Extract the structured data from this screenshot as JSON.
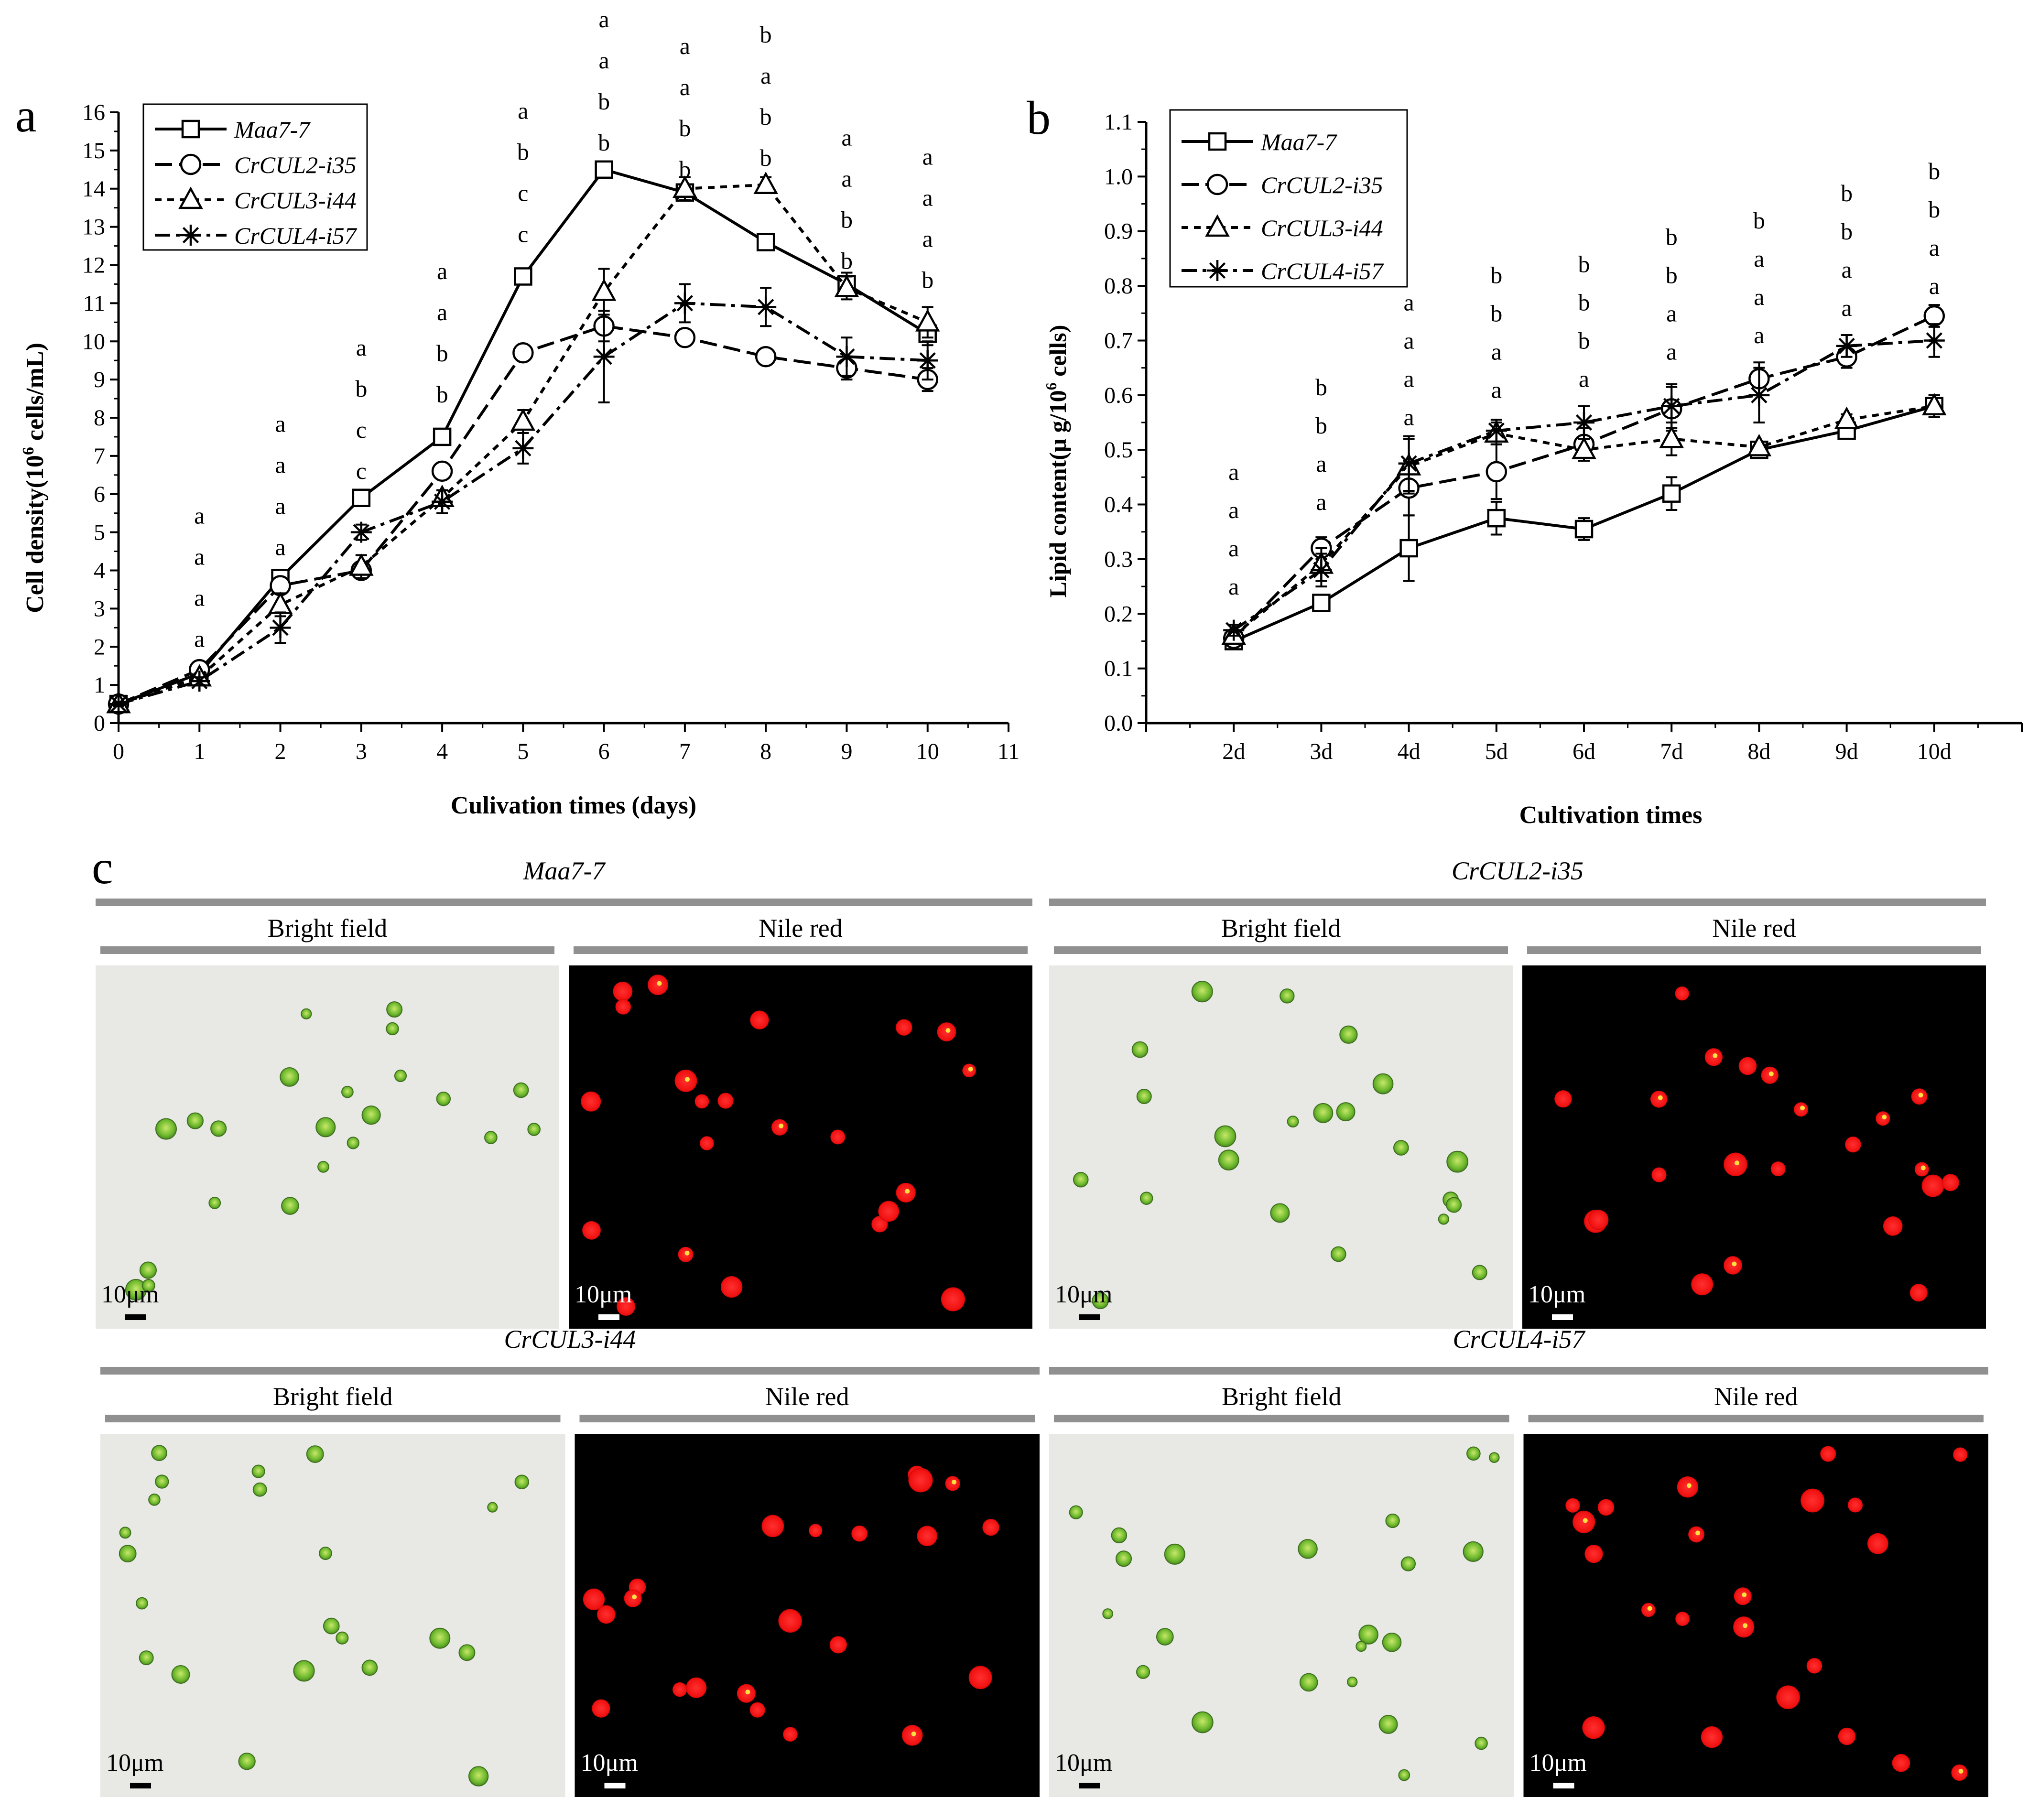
{
  "colors": {
    "panel_letter": "#2a2af0",
    "grey_bar": "#909090",
    "bright_bg": "#e8e8e4",
    "cell_green": "#7cc03a",
    "nile_bg": "#000000",
    "nile_red": "#ff1a1a",
    "nile_yellow": "#ffe040"
  },
  "chart_data": [
    {
      "panel": "a",
      "type": "line",
      "xlabel": "Culivation times (days)",
      "ylabel": "Cell density",
      "ylabel_unit_prefix": "(10",
      "ylabel_unit_sup": "6",
      "ylabel_unit_suffix": " cells/mL)",
      "xlim": [
        0,
        11
      ],
      "ylim": [
        0,
        16
      ],
      "x_ticks": [
        "0",
        "1",
        "2",
        "3",
        "4",
        "5",
        "6",
        "7",
        "8",
        "9",
        "10",
        "11"
      ],
      "y_ticks": [
        "0",
        "1",
        "2",
        "3",
        "4",
        "5",
        "6",
        "7",
        "8",
        "9",
        "10",
        "11",
        "12",
        "13",
        "14",
        "15",
        "16"
      ],
      "legend": [
        "Maa7-7",
        "CrCUL2-i35",
        "CrCUL3-i44",
        "CrCUL4-i57"
      ],
      "x": [
        0,
        1,
        2,
        3,
        4,
        5,
        6,
        7,
        8,
        9,
        10
      ],
      "series": [
        {
          "name": "Maa7-7",
          "marker": "square",
          "dash": "solid",
          "values": [
            0.5,
            1.3,
            3.8,
            5.9,
            7.5,
            11.7,
            14.5,
            13.9,
            12.6,
            11.5,
            10.2
          ],
          "err": [
            0.05,
            0.1,
            0.15,
            0.2,
            0.15,
            0.15,
            0.1,
            0.15,
            0.2,
            0.3,
            0.3
          ]
        },
        {
          "name": "CrCUL2-i35",
          "marker": "circle",
          "dash": "long",
          "values": [
            0.5,
            1.4,
            3.6,
            4.0,
            6.6,
            9.7,
            10.4,
            10.1,
            9.6,
            9.3,
            9.0
          ],
          "err": [
            0.05,
            0.1,
            0.2,
            0.2,
            0.2,
            0.2,
            0.4,
            0.2,
            0.2,
            0.3,
            0.3
          ]
        },
        {
          "name": "CrCUL3-i44",
          "marker": "triangle",
          "dash": "short",
          "values": [
            0.5,
            1.2,
            3.1,
            4.1,
            5.9,
            7.9,
            11.3,
            14.0,
            14.1,
            11.4,
            10.5
          ],
          "err": [
            0.05,
            0.1,
            0.3,
            0.3,
            0.2,
            0.3,
            0.6,
            0.3,
            0.2,
            0.3,
            0.4
          ]
        },
        {
          "name": "CrCUL4-i57",
          "marker": "asterisk",
          "dash": "dashdot",
          "values": [
            0.5,
            1.1,
            2.5,
            5.0,
            5.8,
            7.2,
            9.6,
            11.0,
            10.9,
            9.6,
            9.5
          ],
          "err": [
            0.05,
            0.1,
            0.4,
            0.2,
            0.3,
            0.4,
            1.2,
            0.5,
            0.5,
            0.5,
            0.5
          ]
        }
      ],
      "sig_letters": [
        {
          "x": 1,
          "y_start": 2.0,
          "letters": [
            "a",
            "a",
            "a",
            "a"
          ]
        },
        {
          "x": 2,
          "y_start": 4.4,
          "letters": [
            "a",
            "a",
            "a",
            "a"
          ]
        },
        {
          "x": 3,
          "y_start": 6.4,
          "letters": [
            "c",
            "c",
            "b",
            "a"
          ]
        },
        {
          "x": 4,
          "y_start": 8.4,
          "letters": [
            "b",
            "b",
            "a",
            "a"
          ]
        },
        {
          "x": 5,
          "y_start": 12.6,
          "letters": [
            "c",
            "c",
            "b",
            "a"
          ]
        },
        {
          "x": 6,
          "y_start": 15.0,
          "letters": [
            "b",
            "b",
            "a",
            "a"
          ]
        },
        {
          "x": 7,
          "y_start": 14.3,
          "letters": [
            "b",
            "b",
            "a",
            "a"
          ]
        },
        {
          "x": 8,
          "y_start": 14.6,
          "letters": [
            "b",
            "b",
            "a",
            "b"
          ]
        },
        {
          "x": 9,
          "y_start": 11.9,
          "letters": [
            "b",
            "b",
            "a",
            "a"
          ]
        },
        {
          "x": 10,
          "y_start": 11.4,
          "letters": [
            "b",
            "a",
            "a",
            "a"
          ]
        }
      ]
    },
    {
      "panel": "b",
      "type": "line",
      "xlabel": "Cultivation times",
      "ylabel": "Lipid content(μ g/10",
      "ylabel_sup": "6",
      "ylabel_suffix": " cells)",
      "xlim": [
        1,
        11
      ],
      "ylim": [
        0,
        1.1
      ],
      "categories": [
        "2d",
        "3d",
        "4d",
        "5d",
        "6d",
        "7d",
        "8d",
        "9d",
        "10d"
      ],
      "y_ticks": [
        "0.0",
        "0.1",
        "0.2",
        "0.3",
        "0.4",
        "0.5",
        "0.6",
        "0.7",
        "0.8",
        "0.9",
        "1.0",
        "1.1"
      ],
      "legend": [
        "Maa7-7",
        "CrCUL2-i35",
        "CrCUL3-i44",
        "CrCUL4-i57"
      ],
      "x": [
        2,
        3,
        4,
        5,
        6,
        7,
        8,
        9,
        10
      ],
      "series": [
        {
          "name": "Maa7-7",
          "marker": "square",
          "dash": "solid",
          "values": [
            0.15,
            0.22,
            0.32,
            0.375,
            0.355,
            0.42,
            0.5,
            0.535,
            0.58
          ],
          "err": [
            0.01,
            0.01,
            0.06,
            0.03,
            0.02,
            0.03,
            0.01,
            0.01,
            0.02
          ]
        },
        {
          "name": "CrCUL2-i35",
          "marker": "circle",
          "dash": "long",
          "values": [
            0.155,
            0.32,
            0.43,
            0.46,
            0.51,
            0.575,
            0.63,
            0.67,
            0.745
          ],
          "err": [
            0.01,
            0.02,
            0.05,
            0.05,
            0.03,
            0.04,
            0.03,
            0.02,
            0.02
          ]
        },
        {
          "name": "CrCUL3-i44",
          "marker": "triangle",
          "dash": "short",
          "values": [
            0.16,
            0.29,
            0.47,
            0.53,
            0.5,
            0.52,
            0.505,
            0.555,
            0.58
          ],
          "err": [
            0.01,
            0.03,
            0.05,
            0.02,
            0.02,
            0.03,
            0.01,
            0.01,
            0.02
          ]
        },
        {
          "name": "CrCUL4-i57",
          "marker": "asterisk",
          "dash": "dashdot",
          "values": [
            0.17,
            0.28,
            0.475,
            0.535,
            0.55,
            0.58,
            0.6,
            0.69,
            0.7
          ],
          "err": [
            0.01,
            0.03,
            0.05,
            0.02,
            0.03,
            0.04,
            0.05,
            0.02,
            0.03
          ]
        }
      ],
      "sig_letters": [
        {
          "x": 2,
          "y_start": 0.235,
          "letters": [
            "a",
            "a",
            "a",
            "a"
          ]
        },
        {
          "x": 3,
          "y_start": 0.39,
          "letters": [
            "a",
            "a",
            "b",
            "b"
          ]
        },
        {
          "x": 4,
          "y_start": 0.545,
          "letters": [
            "a",
            "a",
            "a",
            "a"
          ]
        },
        {
          "x": 5,
          "y_start": 0.595,
          "letters": [
            "a",
            "a",
            "b",
            "b"
          ]
        },
        {
          "x": 6,
          "y_start": 0.615,
          "letters": [
            "a",
            "b",
            "b",
            "b"
          ]
        },
        {
          "x": 7,
          "y_start": 0.665,
          "letters": [
            "a",
            "a",
            "b",
            "b"
          ]
        },
        {
          "x": 8,
          "y_start": 0.695,
          "letters": [
            "a",
            "a",
            "a",
            "b"
          ]
        },
        {
          "x": 9,
          "y_start": 0.745,
          "letters": [
            "a",
            "a",
            "b",
            "b"
          ]
        },
        {
          "x": 10,
          "y_start": 0.785,
          "letters": [
            "a",
            "a",
            "b",
            "b"
          ]
        }
      ]
    }
  ],
  "panel_c": {
    "letter": "c",
    "groups": [
      {
        "strain": "Maa7-7",
        "left": "Bright field",
        "right": "Nile red",
        "scale_left": "10μm",
        "scale_right": "10μm"
      },
      {
        "strain": "CrCUL2-i35",
        "left": "Bright field",
        "right": "Nile red",
        "scale_left": "10μm",
        "scale_right": "10μm"
      },
      {
        "strain": "CrCUL3-i44",
        "left": "Bright field",
        "right": "Nile red",
        "scale_left": "10μm",
        "scale_right": "10μm"
      },
      {
        "strain": "CrCUL4-i57",
        "left": "Bright field",
        "right": "Nile red",
        "scale_left": "10μm",
        "scale_right": "10μm"
      }
    ]
  }
}
